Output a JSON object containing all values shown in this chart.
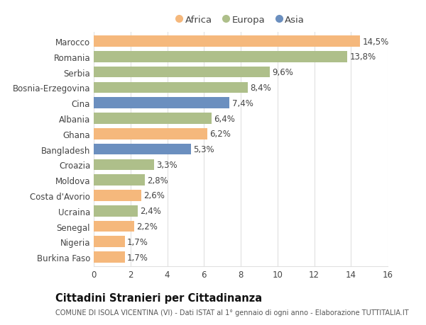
{
  "countries": [
    "Marocco",
    "Romania",
    "Serbia",
    "Bosnia-Erzegovina",
    "Cina",
    "Albania",
    "Ghana",
    "Bangladesh",
    "Croazia",
    "Moldova",
    "Costa d'Avorio",
    "Ucraina",
    "Senegal",
    "Nigeria",
    "Burkina Faso"
  ],
  "values": [
    14.5,
    13.8,
    9.6,
    8.4,
    7.4,
    6.4,
    6.2,
    5.3,
    3.3,
    2.8,
    2.6,
    2.4,
    2.2,
    1.7,
    1.7
  ],
  "labels": [
    "14,5%",
    "13,8%",
    "9,6%",
    "8,4%",
    "7,4%",
    "6,4%",
    "6,2%",
    "5,3%",
    "3,3%",
    "2,8%",
    "2,6%",
    "2,4%",
    "2,2%",
    "1,7%",
    "1,7%"
  ],
  "continents": [
    "Africa",
    "Europa",
    "Europa",
    "Europa",
    "Asia",
    "Europa",
    "Africa",
    "Asia",
    "Europa",
    "Europa",
    "Africa",
    "Europa",
    "Africa",
    "Africa",
    "Africa"
  ],
  "colors": {
    "Africa": "#F5B87C",
    "Europa": "#AEBF8A",
    "Asia": "#6B8FBF"
  },
  "xlim": [
    0,
    16
  ],
  "xticks": [
    0,
    2,
    4,
    6,
    8,
    10,
    12,
    14,
    16
  ],
  "title": "Cittadini Stranieri per Cittadinanza",
  "subtitle": "COMUNE DI ISOLA VICENTINA (VI) - Dati ISTAT al 1° gennaio di ogni anno - Elaborazione TUTTITALIA.IT",
  "background_color": "#ffffff",
  "bar_height": 0.72,
  "grid_color": "#e0e0e0",
  "text_color": "#444444",
  "label_fontsize": 8.5,
  "tick_fontsize": 8.5,
  "title_fontsize": 10.5,
  "subtitle_fontsize": 7.0
}
